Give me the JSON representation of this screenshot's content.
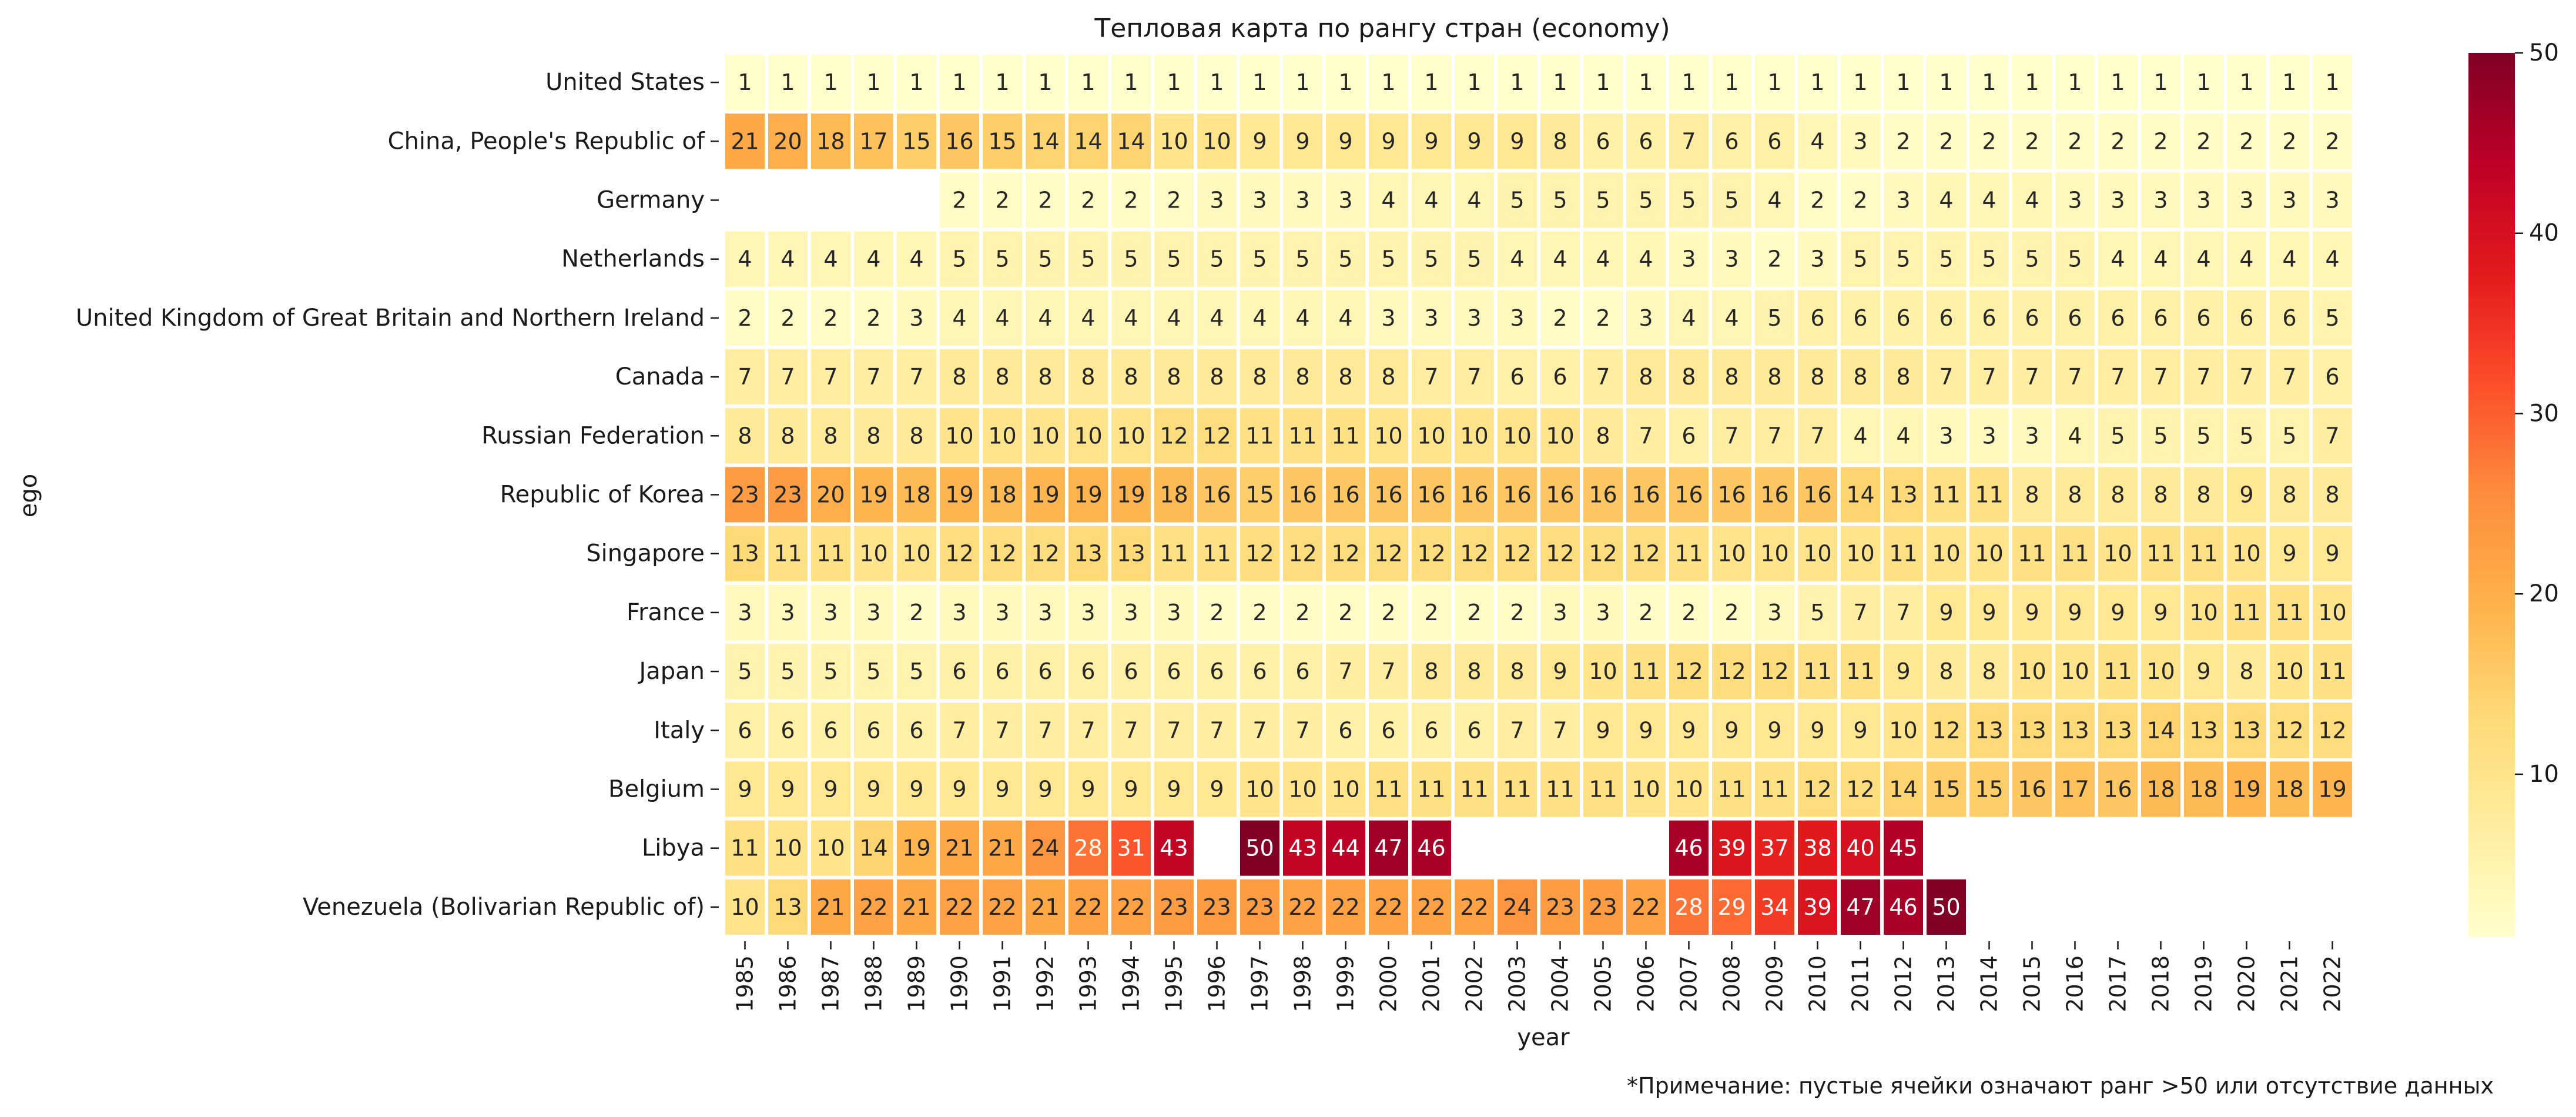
{
  "chart_data": {
    "type": "heatmap",
    "title": "Тепловая карта по рангу стран (economy)",
    "xlabel": "year",
    "ylabel": "ego",
    "note": "*Примечание: пустые ячейки означают ранг >50 или отсутствие данных",
    "x": [
      "1985",
      "1986",
      "1987",
      "1988",
      "1989",
      "1990",
      "1991",
      "1992",
      "1993",
      "1994",
      "1995",
      "1996",
      "1997",
      "1998",
      "1999",
      "2000",
      "2001",
      "2002",
      "2003",
      "2004",
      "2005",
      "2006",
      "2007",
      "2008",
      "2009",
      "2010",
      "2011",
      "2012",
      "2013",
      "2014",
      "2015",
      "2016",
      "2017",
      "2018",
      "2019",
      "2020",
      "2021",
      "2022"
    ],
    "y": [
      "United States",
      "China, People's Republic of",
      "Germany",
      "Netherlands",
      "United Kingdom of Great Britain and Northern Ireland",
      "Canada",
      "Russian Federation",
      "Republic of Korea",
      "Singapore",
      "France",
      "Japan",
      "Italy",
      "Belgium",
      "Libya",
      "Venezuela (Bolivarian Republic of)"
    ],
    "values": [
      [
        1,
        1,
        1,
        1,
        1,
        1,
        1,
        1,
        1,
        1,
        1,
        1,
        1,
        1,
        1,
        1,
        1,
        1,
        1,
        1,
        1,
        1,
        1,
        1,
        1,
        1,
        1,
        1,
        1,
        1,
        1,
        1,
        1,
        1,
        1,
        1,
        1,
        1
      ],
      [
        21,
        20,
        18,
        17,
        15,
        16,
        15,
        14,
        14,
        14,
        10,
        10,
        9,
        9,
        9,
        9,
        9,
        9,
        9,
        8,
        6,
        6,
        7,
        6,
        6,
        4,
        3,
        2,
        2,
        2,
        2,
        2,
        2,
        2,
        2,
        2,
        2,
        2
      ],
      [
        null,
        null,
        null,
        null,
        null,
        2,
        2,
        2,
        2,
        2,
        2,
        3,
        3,
        3,
        3,
        4,
        4,
        4,
        5,
        5,
        5,
        5,
        5,
        5,
        4,
        2,
        2,
        3,
        4,
        4,
        4,
        3,
        3,
        3,
        3,
        3,
        3,
        3
      ],
      [
        4,
        4,
        4,
        4,
        4,
        5,
        5,
        5,
        5,
        5,
        5,
        5,
        5,
        5,
        5,
        5,
        5,
        5,
        4,
        4,
        4,
        4,
        3,
        3,
        2,
        3,
        5,
        5,
        5,
        5,
        5,
        5,
        4,
        4,
        4,
        4,
        4,
        4
      ],
      [
        2,
        2,
        2,
        2,
        3,
        4,
        4,
        4,
        4,
        4,
        4,
        4,
        4,
        4,
        4,
        3,
        3,
        3,
        3,
        2,
        2,
        3,
        4,
        4,
        5,
        6,
        6,
        6,
        6,
        6,
        6,
        6,
        6,
        6,
        6,
        6,
        6,
        5
      ],
      [
        7,
        7,
        7,
        7,
        7,
        8,
        8,
        8,
        8,
        8,
        8,
        8,
        8,
        8,
        8,
        8,
        7,
        7,
        6,
        6,
        7,
        8,
        8,
        8,
        8,
        8,
        8,
        8,
        7,
        7,
        7,
        7,
        7,
        7,
        7,
        7,
        7,
        6
      ],
      [
        8,
        8,
        8,
        8,
        8,
        10,
        10,
        10,
        10,
        10,
        12,
        12,
        11,
        11,
        11,
        10,
        10,
        10,
        10,
        10,
        8,
        7,
        6,
        7,
        7,
        7,
        4,
        4,
        3,
        3,
        3,
        4,
        5,
        5,
        5,
        5,
        5,
        7
      ],
      [
        23,
        23,
        20,
        19,
        18,
        19,
        18,
        19,
        19,
        19,
        18,
        16,
        15,
        16,
        16,
        16,
        16,
        16,
        16,
        16,
        16,
        16,
        16,
        16,
        16,
        16,
        14,
        13,
        11,
        11,
        8,
        8,
        8,
        8,
        8,
        9,
        8,
        8
      ],
      [
        13,
        11,
        11,
        10,
        10,
        12,
        12,
        12,
        13,
        13,
        11,
        11,
        12,
        12,
        12,
        12,
        12,
        12,
        12,
        12,
        12,
        12,
        11,
        10,
        10,
        10,
        10,
        11,
        10,
        10,
        11,
        11,
        10,
        11,
        11,
        10,
        9,
        9
      ],
      [
        3,
        3,
        3,
        3,
        2,
        3,
        3,
        3,
        3,
        3,
        3,
        2,
        2,
        2,
        2,
        2,
        2,
        2,
        2,
        3,
        3,
        2,
        2,
        2,
        3,
        5,
        7,
        7,
        9,
        9,
        9,
        9,
        9,
        9,
        10,
        11,
        11,
        10
      ],
      [
        5,
        5,
        5,
        5,
        5,
        6,
        6,
        6,
        6,
        6,
        6,
        6,
        6,
        6,
        7,
        7,
        8,
        8,
        8,
        9,
        10,
        11,
        12,
        12,
        12,
        11,
        11,
        9,
        8,
        8,
        10,
        10,
        11,
        10,
        9,
        8,
        10,
        11
      ],
      [
        6,
        6,
        6,
        6,
        6,
        7,
        7,
        7,
        7,
        7,
        7,
        7,
        7,
        7,
        6,
        6,
        6,
        6,
        7,
        7,
        9,
        9,
        9,
        9,
        9,
        9,
        9,
        10,
        12,
        13,
        13,
        13,
        13,
        14,
        13,
        13,
        12,
        12
      ],
      [
        9,
        9,
        9,
        9,
        9,
        9,
        9,
        9,
        9,
        9,
        9,
        9,
        10,
        10,
        10,
        11,
        11,
        11,
        11,
        11,
        11,
        10,
        10,
        11,
        11,
        12,
        12,
        14,
        15,
        15,
        16,
        17,
        16,
        18,
        18,
        19,
        18,
        19
      ],
      [
        11,
        10,
        10,
        14,
        19,
        21,
        21,
        24,
        28,
        31,
        43,
        null,
        50,
        43,
        44,
        47,
        46,
        null,
        null,
        null,
        null,
        null,
        46,
        39,
        37,
        38,
        40,
        45,
        null,
        null,
        null,
        null,
        null,
        null,
        null,
        null,
        null,
        null
      ],
      [
        10,
        13,
        21,
        22,
        21,
        22,
        22,
        21,
        22,
        22,
        23,
        23,
        23,
        22,
        22,
        22,
        22,
        22,
        24,
        23,
        23,
        22,
        28,
        29,
        34,
        39,
        47,
        46,
        50,
        null,
        null,
        null,
        null,
        null,
        null,
        null,
        null,
        null
      ]
    ],
    "colorbar": {
      "range": [
        1,
        50
      ],
      "ticks": [
        10,
        20,
        30,
        40,
        50
      ],
      "colormap": "YlOrRd"
    },
    "colors": {
      "text_dark": "#262626",
      "text_light": "#ffffff",
      "cell_border": "#ffffff"
    }
  }
}
